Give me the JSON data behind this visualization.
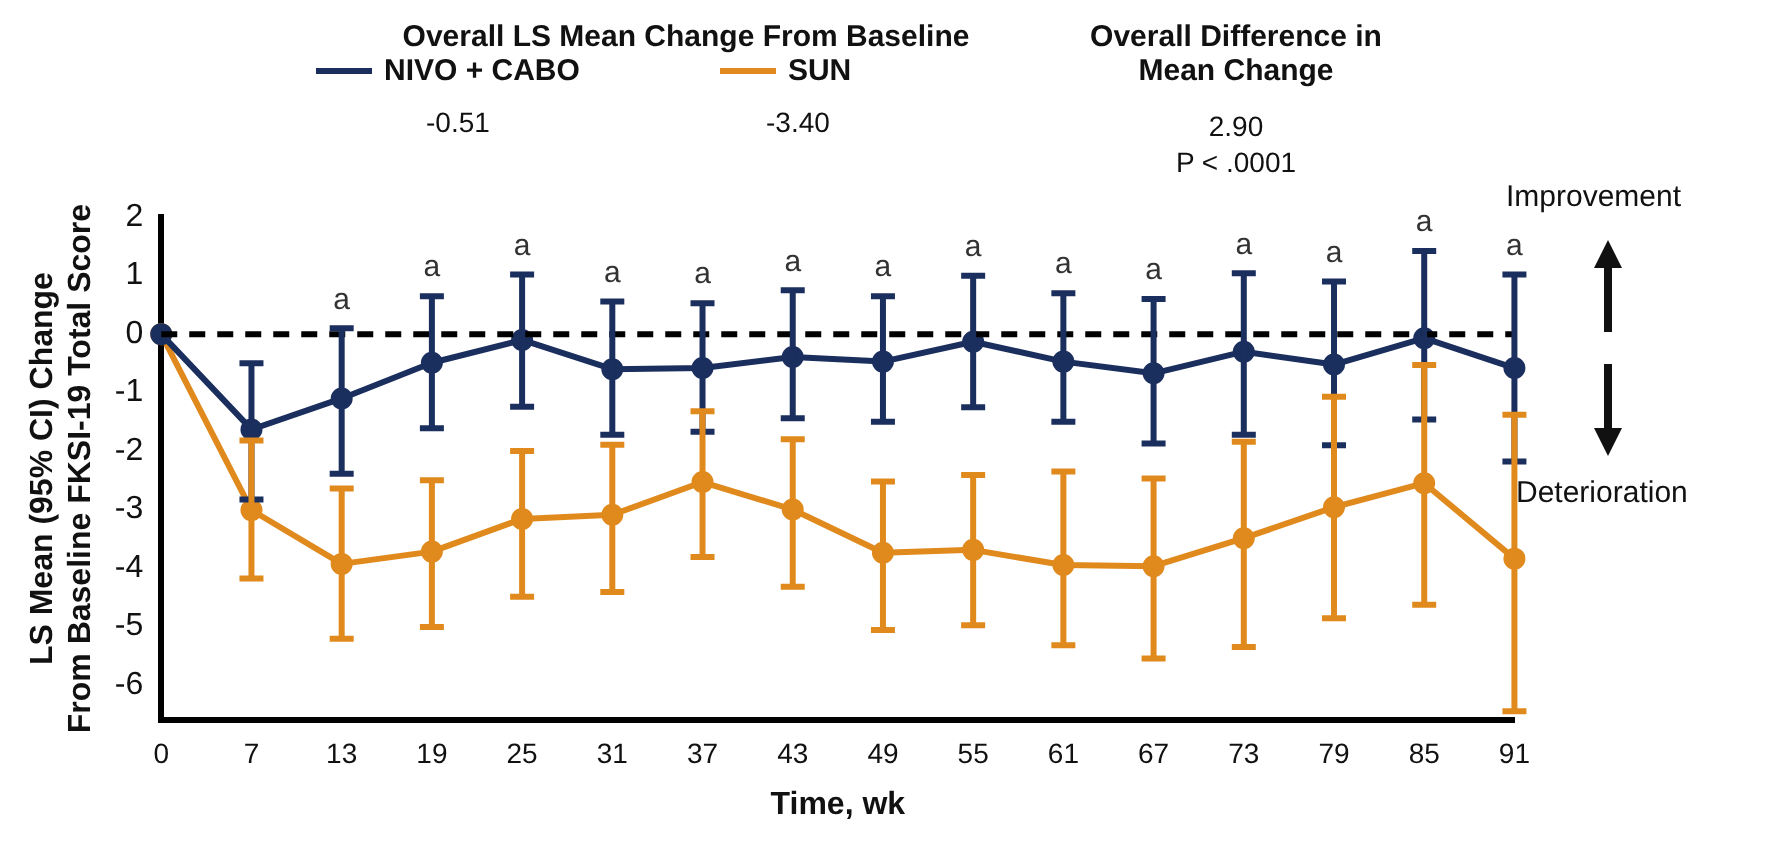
{
  "chart_data": {
    "type": "line",
    "legend_title": "Overall LS Mean Change From Baseline",
    "xlabel": "Time, wk",
    "ylabel": "LS Mean (95% CI) Change From Baseline FKSI-19 Total Score",
    "categories": [
      "0",
      "7",
      "13",
      "19",
      "25",
      "31",
      "37",
      "43",
      "49",
      "55",
      "61",
      "67",
      "73",
      "79",
      "85",
      "91"
    ],
    "series": [
      {
        "name": "NIVO + CABO",
        "color": "#1b2f5e",
        "values": [
          0,
          -1.63,
          -1.1,
          -0.49,
          -0.1,
          -0.6,
          -0.58,
          -0.39,
          -0.47,
          -0.13,
          -0.47,
          -0.67,
          -0.3,
          -0.52,
          -0.07,
          -0.58
        ],
        "errors": [
          null,
          [
            -2.83,
            -0.5
          ],
          [
            -2.39,
            0.1
          ],
          [
            -1.61,
            0.65
          ],
          [
            -1.24,
            1.02
          ],
          [
            -1.72,
            0.56
          ],
          [
            -1.67,
            0.53
          ],
          [
            -1.44,
            0.75
          ],
          [
            -1.5,
            0.65
          ],
          [
            -1.25,
            1.0
          ],
          [
            -1.5,
            0.7
          ],
          [
            -1.87,
            0.6
          ],
          [
            -1.72,
            1.04
          ],
          [
            -1.9,
            0.9
          ],
          [
            -1.46,
            1.42
          ],
          [
            -2.18,
            1.02
          ]
        ]
      },
      {
        "name": "SUN",
        "color": "#e08a1e",
        "values": [
          0,
          -3.01,
          -3.93,
          -3.72,
          -3.16,
          -3.09,
          -2.53,
          -3.0,
          -3.74,
          -3.69,
          -3.95,
          -3.97,
          -3.49,
          -2.96,
          -2.55,
          -3.84
        ],
        "errors": [
          null,
          [
            -4.18,
            -1.82
          ],
          [
            -5.21,
            -2.64
          ],
          [
            -5.01,
            -2.5
          ],
          [
            -4.49,
            -2.0
          ],
          [
            -4.41,
            -1.89
          ],
          [
            -3.81,
            -1.32
          ],
          [
            -4.32,
            -1.8
          ],
          [
            -5.06,
            -2.52
          ],
          [
            -4.98,
            -2.41
          ],
          [
            -5.32,
            -2.35
          ],
          [
            -5.55,
            -2.47
          ],
          [
            -5.35,
            -1.84
          ],
          [
            -4.86,
            -1.07
          ],
          [
            -4.63,
            -0.53
          ],
          [
            -6.45,
            -1.38
          ]
        ]
      }
    ],
    "ylim": [
      -6.6,
      2
    ],
    "yticks": [
      -6,
      -5,
      -4,
      -3,
      -2,
      -1,
      0,
      1,
      2
    ],
    "grid": false,
    "legend": "top",
    "marker": "circle",
    "line_style": "solid",
    "ref_lines": [
      {
        "axis": "y",
        "value": 0,
        "color": "#000000",
        "line_style": "dashed"
      }
    ],
    "annotations": [
      "-0.51",
      "-3.40",
      "Overall Difference in Mean Change",
      "2.90",
      "P < .0001",
      "Improvement",
      "Deterioration",
      {
        "text": "a",
        "x": "13",
        "y": 0.1
      },
      {
        "text": "a",
        "x": "19",
        "y": 0.65
      },
      {
        "text": "a",
        "x": "25",
        "y": 1.02
      },
      {
        "text": "a",
        "x": "31",
        "y": 0.56
      },
      {
        "text": "a",
        "x": "37",
        "y": 0.53
      },
      {
        "text": "a",
        "x": "43",
        "y": 0.75
      },
      {
        "text": "a",
        "x": "49",
        "y": 0.65
      },
      {
        "text": "a",
        "x": "55",
        "y": 1.0
      },
      {
        "text": "a",
        "x": "61",
        "y": 0.7
      },
      {
        "text": "a",
        "x": "67",
        "y": 0.6
      },
      {
        "text": "a",
        "x": "73",
        "y": 1.04
      },
      {
        "text": "a",
        "x": "79",
        "y": 0.9
      },
      {
        "text": "a",
        "x": "85",
        "y": 1.42
      },
      {
        "text": "a",
        "x": "91",
        "y": 1.02
      }
    ]
  }
}
